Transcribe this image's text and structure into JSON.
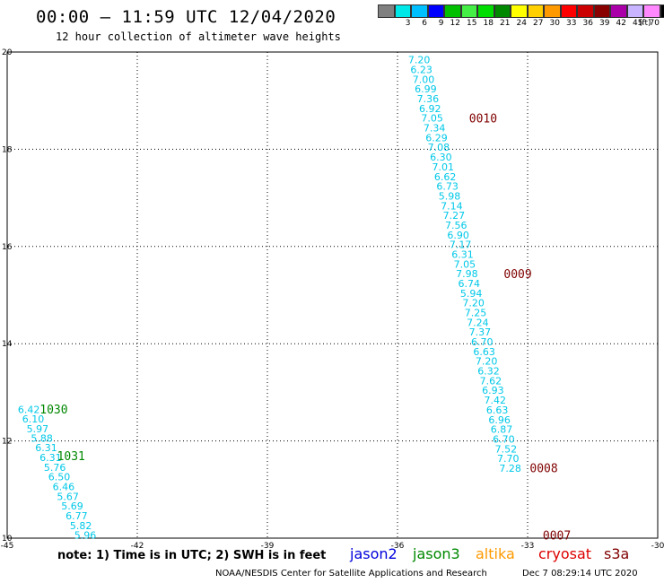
{
  "header": {
    "title": "00:00 – 11:59 UTC 12/04/2020",
    "subtitle": "12 hour collection of altimeter wave heights"
  },
  "color_scale": {
    "unit": "(ft)",
    "swatches": [
      {
        "color": "#808080",
        "label": ""
      },
      {
        "color": "#00e8e8",
        "label": "3"
      },
      {
        "color": "#00bfff",
        "label": "6"
      },
      {
        "color": "#0000ff",
        "label": "9"
      },
      {
        "color": "#00c000",
        "label": "12"
      },
      {
        "color": "#44ee44",
        "label": "15"
      },
      {
        "color": "#00dd00",
        "label": "18"
      },
      {
        "color": "#008800",
        "label": "21"
      },
      {
        "color": "#ffff00",
        "label": "24"
      },
      {
        "color": "#ffd000",
        "label": "27"
      },
      {
        "color": "#ff9900",
        "label": "30"
      },
      {
        "color": "#ff0000",
        "label": "33"
      },
      {
        "color": "#cc0000",
        "label": "36"
      },
      {
        "color": "#880000",
        "label": "39"
      },
      {
        "color": "#aa00aa",
        "label": "42"
      },
      {
        "color": "#c8b4ff",
        "label": "45"
      },
      {
        "color": "#ff88ff",
        "label": "70"
      },
      {
        "color": "#000000",
        "label": ""
      }
    ]
  },
  "chart_data": {
    "type": "scatter",
    "xlim": [
      -45,
      -30
    ],
    "ylim": [
      10,
      20
    ],
    "xticks": [
      -45,
      -42,
      -39,
      -36,
      -33,
      -30
    ],
    "yticks": [
      10,
      12,
      14,
      16,
      18,
      20
    ],
    "xtick_labels": [
      "-45",
      "-42",
      "-39",
      "-36",
      "-33",
      "-30"
    ],
    "ytick_labels": [
      "10",
      "12",
      "14",
      "16",
      "18",
      "20"
    ],
    "grid": true,
    "series": [
      {
        "name": "jason3",
        "color": "#00c8e8",
        "points": [
          {
            "x": -44.5,
            "y": 12.65,
            "label": "6.42"
          },
          {
            "x": -44.4,
            "y": 12.45,
            "label": "6.10"
          },
          {
            "x": -44.3,
            "y": 12.25,
            "label": "5.97"
          },
          {
            "x": -44.2,
            "y": 12.06,
            "label": "5.88"
          },
          {
            "x": -44.1,
            "y": 11.86,
            "label": "6.31"
          },
          {
            "x": -44.0,
            "y": 11.66,
            "label": "6.31"
          },
          {
            "x": -43.9,
            "y": 11.46,
            "label": "5.76"
          },
          {
            "x": -43.8,
            "y": 11.26,
            "label": "6.50"
          },
          {
            "x": -43.7,
            "y": 11.06,
            "label": "6.46"
          },
          {
            "x": -43.6,
            "y": 10.86,
            "label": "5.67"
          },
          {
            "x": -43.5,
            "y": 10.66,
            "label": "5.69"
          },
          {
            "x": -43.4,
            "y": 10.46,
            "label": "6.77"
          },
          {
            "x": -43.3,
            "y": 10.26,
            "label": "5.82"
          },
          {
            "x": -43.2,
            "y": 10.06,
            "label": "5.96"
          }
        ]
      },
      {
        "name": "cryosat",
        "color": "#00c8e8",
        "points": [
          {
            "x": -35.5,
            "y": 19.84,
            "label": "7.20"
          },
          {
            "x": -35.45,
            "y": 19.64,
            "label": "6.23"
          },
          {
            "x": -35.4,
            "y": 19.44,
            "label": "7.00"
          },
          {
            "x": -35.35,
            "y": 19.24,
            "label": "6.99"
          },
          {
            "x": -35.3,
            "y": 19.04,
            "label": "7.36"
          },
          {
            "x": -35.25,
            "y": 18.84,
            "label": "6.92"
          },
          {
            "x": -35.2,
            "y": 18.64,
            "label": "7.05"
          },
          {
            "x": -35.15,
            "y": 18.44,
            "label": "7.34"
          },
          {
            "x": -35.1,
            "y": 18.24,
            "label": "6.29"
          },
          {
            "x": -35.05,
            "y": 18.04,
            "label": "7.08"
          },
          {
            "x": -35.0,
            "y": 17.84,
            "label": "6.30"
          },
          {
            "x": -34.95,
            "y": 17.64,
            "label": "7.01"
          },
          {
            "x": -34.9,
            "y": 17.44,
            "label": "6.62"
          },
          {
            "x": -34.85,
            "y": 17.24,
            "label": "6.73"
          },
          {
            "x": -34.8,
            "y": 17.04,
            "label": "5.98"
          },
          {
            "x": -34.75,
            "y": 16.84,
            "label": "7.14"
          },
          {
            "x": -34.7,
            "y": 16.64,
            "label": "7.27"
          },
          {
            "x": -34.65,
            "y": 16.44,
            "label": "7.56"
          },
          {
            "x": -34.6,
            "y": 16.24,
            "label": "6.90"
          },
          {
            "x": -34.55,
            "y": 16.04,
            "label": "7.17"
          },
          {
            "x": -34.5,
            "y": 15.84,
            "label": "6.31"
          },
          {
            "x": -34.45,
            "y": 15.64,
            "label": "7.05"
          },
          {
            "x": -34.4,
            "y": 15.44,
            "label": "7.98"
          },
          {
            "x": -34.35,
            "y": 15.24,
            "label": "6.74"
          },
          {
            "x": -34.3,
            "y": 15.04,
            "label": "5.94"
          },
          {
            "x": -34.25,
            "y": 14.84,
            "label": "7.20"
          },
          {
            "x": -34.2,
            "y": 14.64,
            "label": "7.25"
          },
          {
            "x": -34.15,
            "y": 14.44,
            "label": "7.24"
          },
          {
            "x": -34.1,
            "y": 14.24,
            "label": "7.37"
          },
          {
            "x": -34.05,
            "y": 14.04,
            "label": "6.70"
          },
          {
            "x": -34.0,
            "y": 13.84,
            "label": "6.63"
          },
          {
            "x": -33.95,
            "y": 13.64,
            "label": "7.20"
          },
          {
            "x": -33.9,
            "y": 13.44,
            "label": "6.32"
          },
          {
            "x": -33.85,
            "y": 13.24,
            "label": "7.62"
          },
          {
            "x": -33.8,
            "y": 13.04,
            "label": "6.93"
          },
          {
            "x": -33.75,
            "y": 12.84,
            "label": "7.42"
          },
          {
            "x": -33.7,
            "y": 12.64,
            "label": "6.63"
          },
          {
            "x": -33.65,
            "y": 12.44,
            "label": "6.96"
          },
          {
            "x": -33.6,
            "y": 12.24,
            "label": "6.87"
          },
          {
            "x": -33.55,
            "y": 12.04,
            "label": "6.70"
          },
          {
            "x": -33.5,
            "y": 11.84,
            "label": "7.52"
          },
          {
            "x": -33.45,
            "y": 11.64,
            "label": "7.70"
          },
          {
            "x": -33.4,
            "y": 11.44,
            "label": "7.28"
          }
        ]
      }
    ],
    "annotations": [
      {
        "text": "1030",
        "x": -44.25,
        "y": 12.66,
        "color": "#008800"
      },
      {
        "text": "1031",
        "x": -43.85,
        "y": 11.7,
        "color": "#008800"
      },
      {
        "text": "0010",
        "x": -34.35,
        "y": 18.64,
        "color": "#800000"
      },
      {
        "text": "0009",
        "x": -33.55,
        "y": 15.44,
        "color": "#800000"
      },
      {
        "text": "0008",
        "x": -32.95,
        "y": 11.45,
        "color": "#800000"
      },
      {
        "text": "0007",
        "x": -32.65,
        "y": 10.06,
        "color": "#800000"
      }
    ]
  },
  "footer": {
    "note": "note: 1) Time is in UTC; 2) SWH is in feet",
    "satellites": [
      {
        "name": "jason2",
        "color": "#0000dd"
      },
      {
        "name": "jason3",
        "color": "#008800"
      },
      {
        "name": "altika",
        "color": "#ff9900"
      },
      {
        "name": "cryosat",
        "color": "#dd0000"
      },
      {
        "name": "s3a",
        "color": "#800000"
      }
    ],
    "credit": "NOAA/NESDIS Center for Satellite Applications and Research",
    "generated": "Dec  7 08:29:14 UTC 2020"
  }
}
